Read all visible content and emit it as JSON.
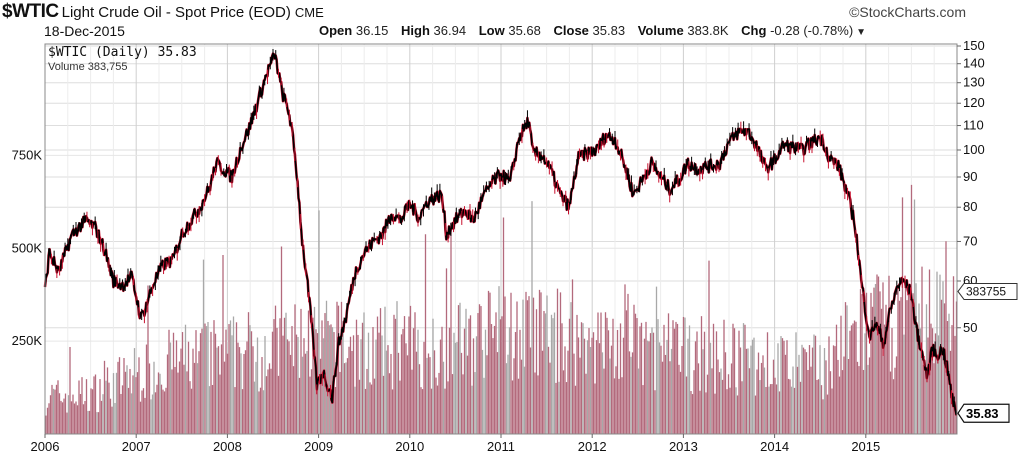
{
  "header": {
    "symbol": "$WTIC",
    "description": "Light Crude Oil - Spot Price (EOD)",
    "exchange": "CME",
    "brand": "StockCharts.com",
    "brand_icon": "copyright-icon",
    "date": "18-Dec-2015",
    "open_label": "Open",
    "open_value": "36.15",
    "high_label": "High",
    "high_value": "36.94",
    "low_label": "Low",
    "low_value": "35.68",
    "close_label": "Close",
    "close_value": "35.83",
    "volume_label": "Volume",
    "volume_value": "383.8K",
    "chg_label": "Chg",
    "chg_value": "-0.28 (-0.78%)",
    "chg_icon": "triangle-down-icon"
  },
  "legend": {
    "price_label": "$WTIC (Daily) 35.83",
    "volume_label": "Volume 383,755"
  },
  "chart_data": {
    "type": "line",
    "title": "$WTIC Light Crude Oil - Spot Price (EOD)",
    "price_axis": {
      "scale": "log",
      "ylim": [
        36,
        150
      ],
      "ticks": [
        150,
        140,
        130,
        120,
        110,
        100,
        90,
        80,
        70,
        60,
        50
      ]
    },
    "volume_axis": {
      "ylim": [
        0,
        1050000
      ],
      "ticks": [
        {
          "v": 750000,
          "label": "750K"
        },
        {
          "v": 500000,
          "label": "500K"
        },
        {
          "v": 250000,
          "label": "250K"
        }
      ]
    },
    "x_axis": {
      "xlim": [
        2006.0,
        2016.0
      ],
      "ticks": [
        "2006",
        "2007",
        "2008",
        "2009",
        "2010",
        "2011",
        "2012",
        "2013",
        "2014",
        "2015"
      ]
    },
    "grid": true,
    "price_series": {
      "name": "$WTIC (Daily)",
      "color": "#000000",
      "down_color": "#c8102e",
      "last_value": "35.83",
      "points": [
        [
          2006.0,
          58
        ],
        [
          2006.05,
          67
        ],
        [
          2006.15,
          62
        ],
        [
          2006.3,
          72
        ],
        [
          2006.45,
          76
        ],
        [
          2006.55,
          74
        ],
        [
          2006.65,
          68
        ],
        [
          2006.75,
          60
        ],
        [
          2006.85,
          59
        ],
        [
          2006.95,
          61
        ],
        [
          2007.05,
          52
        ],
        [
          2007.1,
          54
        ],
        [
          2007.2,
          60
        ],
        [
          2007.3,
          64
        ],
        [
          2007.4,
          65
        ],
        [
          2007.5,
          72
        ],
        [
          2007.6,
          76
        ],
        [
          2007.7,
          80
        ],
        [
          2007.8,
          86
        ],
        [
          2007.88,
          95
        ],
        [
          2007.95,
          93
        ],
        [
          2008.05,
          90
        ],
        [
          2008.15,
          101
        ],
        [
          2008.25,
          110
        ],
        [
          2008.35,
          123
        ],
        [
          2008.45,
          137
        ],
        [
          2008.52,
          145
        ],
        [
          2008.6,
          125
        ],
        [
          2008.68,
          115
        ],
        [
          2008.75,
          95
        ],
        [
          2008.82,
          70
        ],
        [
          2008.9,
          55
        ],
        [
          2008.98,
          40
        ],
        [
          2009.05,
          42
        ],
        [
          2009.15,
          38
        ],
        [
          2009.22,
          47
        ],
        [
          2009.3,
          52
        ],
        [
          2009.4,
          62
        ],
        [
          2009.5,
          67
        ],
        [
          2009.6,
          70
        ],
        [
          2009.7,
          72
        ],
        [
          2009.8,
          78
        ],
        [
          2009.9,
          76
        ],
        [
          2010.0,
          81
        ],
        [
          2010.1,
          77
        ],
        [
          2010.2,
          82
        ],
        [
          2010.35,
          84
        ],
        [
          2010.4,
          72
        ],
        [
          2010.5,
          76
        ],
        [
          2010.6,
          79
        ],
        [
          2010.7,
          76
        ],
        [
          2010.8,
          83
        ],
        [
          2010.9,
          88
        ],
        [
          2011.0,
          91
        ],
        [
          2011.1,
          88
        ],
        [
          2011.2,
          105
        ],
        [
          2011.3,
          112
        ],
        [
          2011.35,
          99
        ],
        [
          2011.45,
          98
        ],
        [
          2011.55,
          92
        ],
        [
          2011.65,
          84
        ],
        [
          2011.75,
          80
        ],
        [
          2011.85,
          97
        ],
        [
          2011.95,
          99
        ],
        [
          2012.05,
          100
        ],
        [
          2012.15,
          106
        ],
        [
          2012.25,
          104
        ],
        [
          2012.35,
          95
        ],
        [
          2012.45,
          84
        ],
        [
          2012.55,
          89
        ],
        [
          2012.65,
          95
        ],
        [
          2012.75,
          90
        ],
        [
          2012.85,
          86
        ],
        [
          2012.95,
          89
        ],
        [
          2013.05,
          95
        ],
        [
          2013.15,
          93
        ],
        [
          2013.3,
          94
        ],
        [
          2013.4,
          95
        ],
        [
          2013.5,
          103
        ],
        [
          2013.6,
          107
        ],
        [
          2013.7,
          108
        ],
        [
          2013.8,
          102
        ],
        [
          2013.9,
          93
        ],
        [
          2014.0,
          96
        ],
        [
          2014.1,
          102
        ],
        [
          2014.2,
          101
        ],
        [
          2014.3,
          100
        ],
        [
          2014.4,
          103
        ],
        [
          2014.5,
          105
        ],
        [
          2014.55,
          102
        ],
        [
          2014.6,
          97
        ],
        [
          2014.7,
          94
        ],
        [
          2014.8,
          84
        ],
        [
          2014.88,
          75
        ],
        [
          2014.95,
          60
        ],
        [
          2015.0,
          53
        ],
        [
          2015.05,
          48
        ],
        [
          2015.1,
          51
        ],
        [
          2015.2,
          47
        ],
        [
          2015.25,
          52
        ],
        [
          2015.35,
          59
        ],
        [
          2015.42,
          60
        ],
        [
          2015.5,
          57
        ],
        [
          2015.55,
          50
        ],
        [
          2015.62,
          45
        ],
        [
          2015.68,
          41
        ],
        [
          2015.72,
          46
        ],
        [
          2015.78,
          45
        ],
        [
          2015.85,
          46
        ],
        [
          2015.9,
          42
        ],
        [
          2015.96,
          37
        ],
        [
          2016.0,
          35.83
        ]
      ]
    },
    "volume_series": {
      "name": "Volume",
      "color": "#b36a7c",
      "last_value": "383755",
      "monthly_avg": [
        [
          2006.0,
          110000
        ],
        [
          2006.5,
          120000
        ],
        [
          2007.0,
          180000
        ],
        [
          2007.5,
          220000
        ],
        [
          2008.0,
          240000
        ],
        [
          2008.5,
          260000
        ],
        [
          2009.0,
          280000
        ],
        [
          2009.5,
          250000
        ],
        [
          2010.0,
          260000
        ],
        [
          2010.5,
          270000
        ],
        [
          2011.0,
          300000
        ],
        [
          2011.5,
          300000
        ],
        [
          2012.0,
          270000
        ],
        [
          2012.5,
          260000
        ],
        [
          2013.0,
          240000
        ],
        [
          2013.5,
          230000
        ],
        [
          2014.0,
          210000
        ],
        [
          2014.5,
          200000
        ],
        [
          2015.0,
          320000
        ],
        [
          2015.5,
          330000
        ],
        [
          2016.0,
          380000
        ]
      ]
    }
  }
}
